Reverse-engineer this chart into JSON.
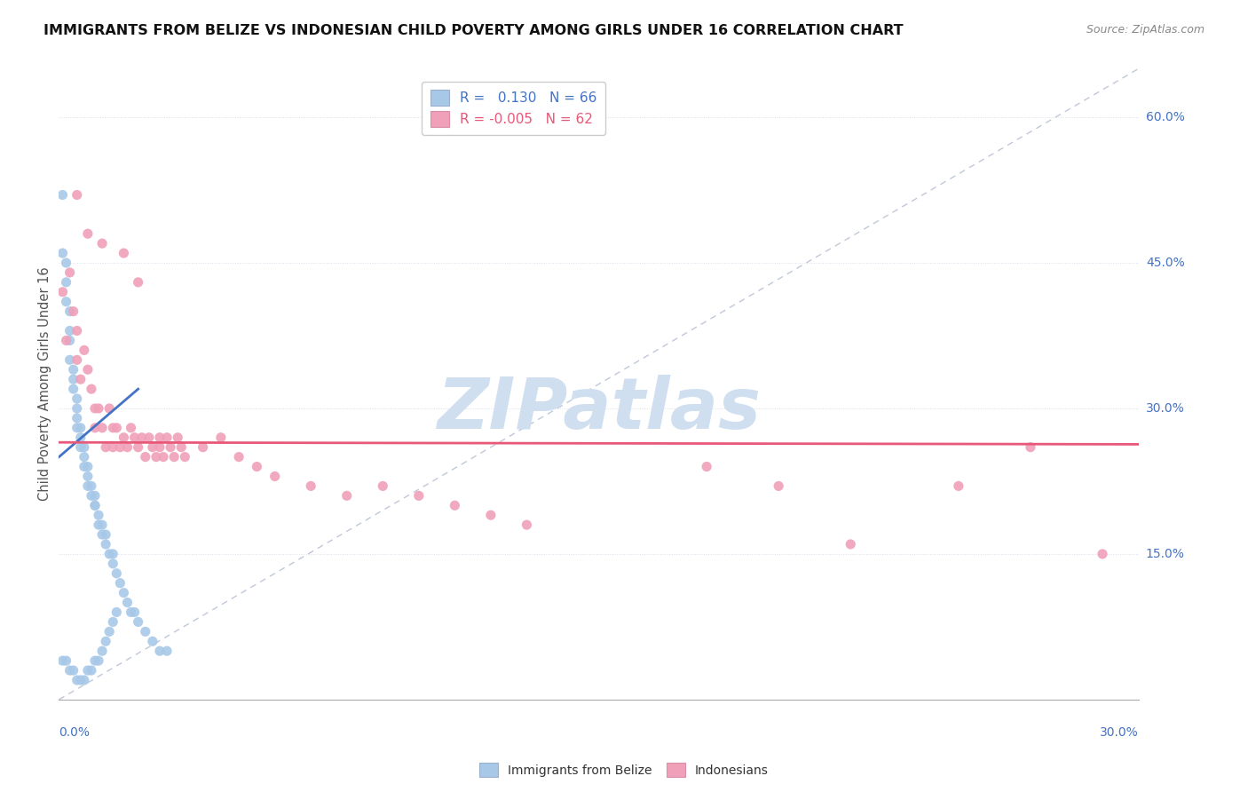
{
  "title": "IMMIGRANTS FROM BELIZE VS INDONESIAN CHILD POVERTY AMONG GIRLS UNDER 16 CORRELATION CHART",
  "source": "Source: ZipAtlas.com",
  "ylabel": "Child Poverty Among Girls Under 16",
  "ytick_labels": [
    "15.0%",
    "30.0%",
    "45.0%",
    "60.0%"
  ],
  "ytick_values": [
    0.15,
    0.3,
    0.45,
    0.6
  ],
  "xlim": [
    0.0,
    0.3
  ],
  "ylim": [
    0.0,
    0.65
  ],
  "color_belize": "#a8c8e8",
  "color_indonesian": "#f0a0b8",
  "color_belize_line": "#4472c4",
  "color_indonesian_line": "#e85878",
  "watermark": "ZIPatlas",
  "watermark_color": "#d0dff0",
  "belize_x": [
    0.001,
    0.001,
    0.002,
    0.002,
    0.002,
    0.003,
    0.003,
    0.003,
    0.003,
    0.004,
    0.004,
    0.004,
    0.005,
    0.005,
    0.005,
    0.005,
    0.006,
    0.006,
    0.006,
    0.007,
    0.007,
    0.007,
    0.008,
    0.008,
    0.008,
    0.009,
    0.009,
    0.01,
    0.01,
    0.01,
    0.011,
    0.011,
    0.012,
    0.012,
    0.013,
    0.013,
    0.014,
    0.015,
    0.015,
    0.016,
    0.017,
    0.018,
    0.019,
    0.02,
    0.021,
    0.022,
    0.024,
    0.026,
    0.028,
    0.03,
    0.001,
    0.002,
    0.003,
    0.004,
    0.005,
    0.006,
    0.007,
    0.008,
    0.009,
    0.01,
    0.011,
    0.012,
    0.013,
    0.014,
    0.015,
    0.016
  ],
  "belize_y": [
    0.52,
    0.46,
    0.45,
    0.43,
    0.41,
    0.4,
    0.38,
    0.37,
    0.35,
    0.34,
    0.33,
    0.32,
    0.31,
    0.3,
    0.29,
    0.28,
    0.28,
    0.27,
    0.26,
    0.26,
    0.25,
    0.24,
    0.24,
    0.23,
    0.22,
    0.22,
    0.21,
    0.21,
    0.2,
    0.2,
    0.19,
    0.18,
    0.18,
    0.17,
    0.17,
    0.16,
    0.15,
    0.15,
    0.14,
    0.13,
    0.12,
    0.11,
    0.1,
    0.09,
    0.09,
    0.08,
    0.07,
    0.06,
    0.05,
    0.05,
    0.04,
    0.04,
    0.03,
    0.03,
    0.02,
    0.02,
    0.02,
    0.03,
    0.03,
    0.04,
    0.04,
    0.05,
    0.06,
    0.07,
    0.08,
    0.09
  ],
  "indonesian_x": [
    0.001,
    0.002,
    0.003,
    0.004,
    0.005,
    0.005,
    0.006,
    0.007,
    0.008,
    0.009,
    0.01,
    0.01,
    0.011,
    0.012,
    0.013,
    0.014,
    0.015,
    0.015,
    0.016,
    0.017,
    0.018,
    0.019,
    0.02,
    0.021,
    0.022,
    0.023,
    0.024,
    0.025,
    0.026,
    0.027,
    0.028,
    0.029,
    0.03,
    0.031,
    0.032,
    0.033,
    0.034,
    0.035,
    0.04,
    0.045,
    0.05,
    0.055,
    0.06,
    0.07,
    0.08,
    0.09,
    0.1,
    0.11,
    0.12,
    0.13,
    0.005,
    0.008,
    0.012,
    0.018,
    0.022,
    0.028,
    0.18,
    0.2,
    0.22,
    0.25,
    0.27,
    0.29
  ],
  "indonesian_y": [
    0.42,
    0.37,
    0.44,
    0.4,
    0.38,
    0.35,
    0.33,
    0.36,
    0.34,
    0.32,
    0.3,
    0.28,
    0.3,
    0.28,
    0.26,
    0.3,
    0.28,
    0.26,
    0.28,
    0.26,
    0.27,
    0.26,
    0.28,
    0.27,
    0.26,
    0.27,
    0.25,
    0.27,
    0.26,
    0.25,
    0.26,
    0.25,
    0.27,
    0.26,
    0.25,
    0.27,
    0.26,
    0.25,
    0.26,
    0.27,
    0.25,
    0.24,
    0.23,
    0.22,
    0.21,
    0.22,
    0.21,
    0.2,
    0.19,
    0.18,
    0.52,
    0.48,
    0.47,
    0.46,
    0.43,
    0.27,
    0.24,
    0.22,
    0.16,
    0.22,
    0.26,
    0.15
  ],
  "belize_line_x": [
    0.0,
    0.022
  ],
  "belize_line_y": [
    0.25,
    0.32
  ],
  "indonesian_line_x": [
    0.0,
    0.3
  ],
  "indonesian_line_y": [
    0.265,
    0.263
  ]
}
